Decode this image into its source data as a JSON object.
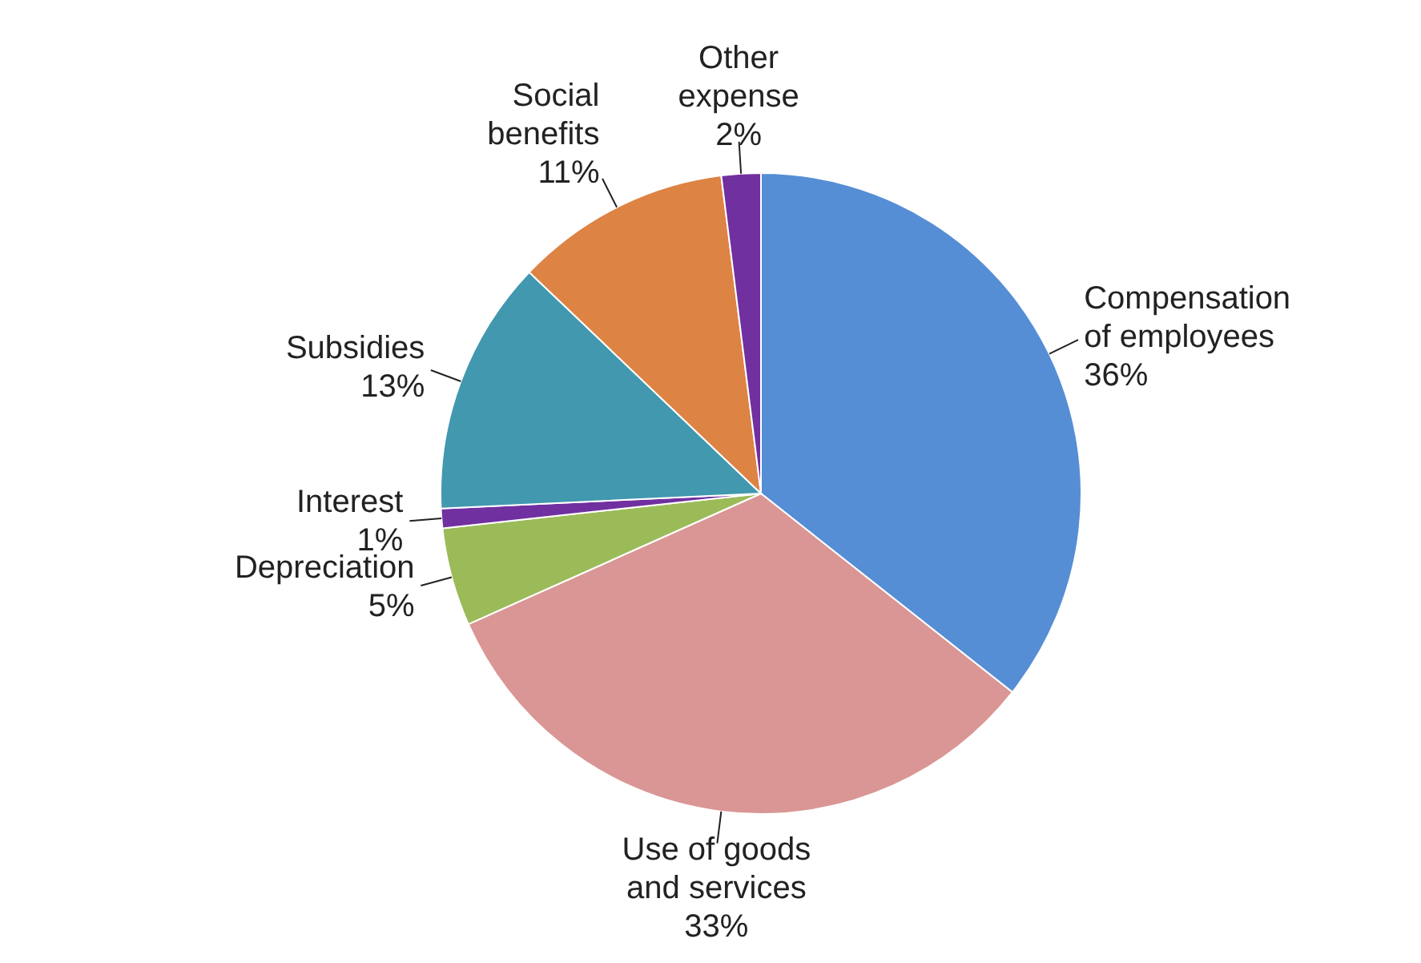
{
  "chart_data": {
    "type": "pie",
    "categories": [
      "Compensation of employees",
      "Use of goods and services",
      "Depreciation",
      "Interest",
      "Subsidies",
      "Social benefits",
      "Other expense"
    ],
    "values": [
      36,
      33,
      5,
      1,
      13,
      11,
      2
    ],
    "value_labels": [
      "36%",
      "33%",
      "5%",
      "1%",
      "13%",
      "11%",
      "2%"
    ],
    "colors": [
      "#558ed5",
      "#d99694",
      "#9bbb59",
      "#7030a0",
      "#4198af",
      "#dd8344",
      "#7030a0"
    ],
    "legend": false
  }
}
